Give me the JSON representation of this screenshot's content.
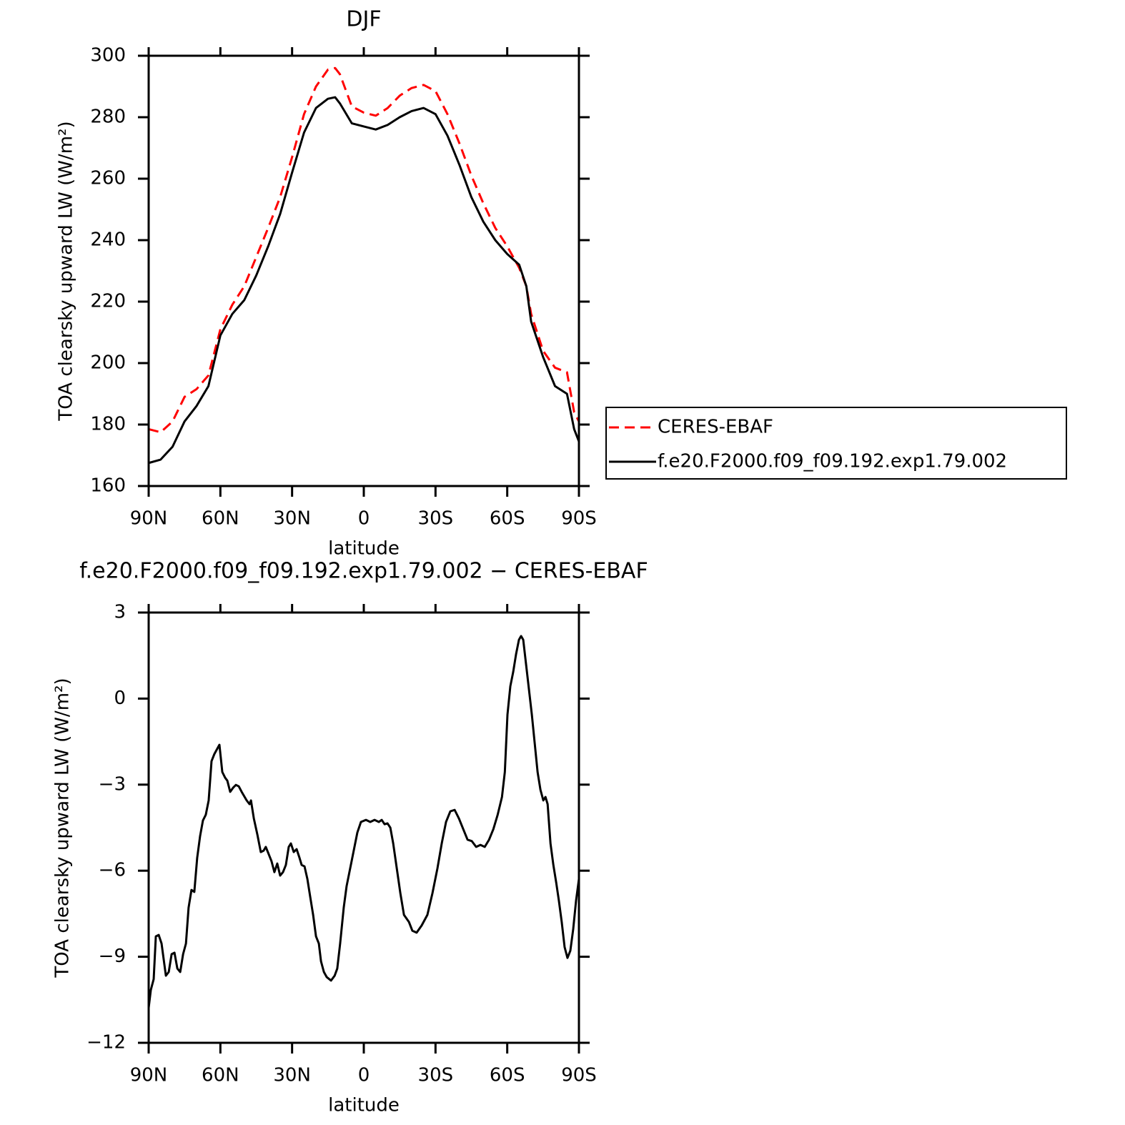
{
  "chart_data": [
    {
      "type": "line",
      "title": "DJF",
      "xlabel": "latitude",
      "ylabel": "TOA clearsky upward LW (W/m²)",
      "x": [
        90,
        85,
        80,
        75,
        70,
        65,
        60,
        55,
        50,
        45,
        40,
        35,
        30,
        25,
        20,
        15,
        12,
        10,
        5,
        0,
        -5,
        -10,
        -15,
        -20,
        -25,
        -30,
        -35,
        -40,
        -45,
        -50,
        -55,
        -60,
        -65,
        -68,
        -70,
        -75,
        -80,
        -85,
        -88,
        -90
      ],
      "series": [
        {
          "name": "CERES-EBAF",
          "color": "#ff0000",
          "line_style": "dashed",
          "values": [
            178.5,
            177.5,
            181,
            189,
            191.5,
            196,
            211,
            219,
            225,
            234.5,
            244,
            254,
            267,
            281,
            290,
            295.5,
            296,
            294,
            283.5,
            281.5,
            280.5,
            283,
            287,
            289.5,
            290.5,
            288.5,
            281,
            271.5,
            261,
            252,
            244,
            238,
            231,
            225,
            216,
            204,
            198.5,
            197,
            184,
            181
          ]
        },
        {
          "name": "f.e20.F2000.f09_f09.192.exp1.79.002",
          "color": "#000000",
          "line_style": "solid",
          "values": [
            167.5,
            168.6,
            172.8,
            181,
            186,
            192.5,
            209,
            216,
            220.5,
            228.5,
            238,
            248.5,
            262,
            275,
            283,
            286,
            286.5,
            284.5,
            278,
            277,
            276,
            277.5,
            280,
            282,
            283,
            281,
            274,
            264.5,
            254,
            246,
            240,
            235.5,
            232,
            225,
            213.5,
            202,
            192.5,
            190,
            178.5,
            174.5
          ]
        }
      ],
      "xlim": [
        90,
        -90
      ],
      "xticks": [
        {
          "value": 90,
          "label": "90N"
        },
        {
          "value": 60,
          "label": "60N"
        },
        {
          "value": 30,
          "label": "30N"
        },
        0,
        {
          "value": -30,
          "label": "30S"
        },
        {
          "value": -60,
          "label": "60S"
        },
        {
          "value": -90,
          "label": "90S"
        }
      ],
      "ylim": [
        160,
        300
      ],
      "yticks": [
        160,
        180,
        200,
        220,
        240,
        260,
        280,
        300
      ],
      "legend": "right"
    },
    {
      "type": "line",
      "title": "f.e20.F2000.f09_f09.192.exp1.79.002 − CERES-EBAF",
      "xlabel": "latitude",
      "ylabel": "TOA clearsky upward LW (W/m²)",
      "x": [
        90.0,
        89.1,
        87.9,
        87.0,
        85.8,
        84.6,
        82.8,
        81.6,
        80.4,
        79.2,
        78.0,
        76.8,
        75.6,
        74.4,
        73.3,
        72.1,
        70.9,
        69.7,
        68.5,
        67.3,
        66.1,
        64.9,
        63.7,
        62.5,
        60.4,
        59.2,
        58.0,
        57.1,
        55.9,
        54.7,
        53.5,
        52.3,
        51.1,
        49.0,
        47.8,
        47.2,
        46.0,
        44.5,
        43.1,
        41.9,
        41.0,
        39.8,
        38.6,
        37.4,
        36.2,
        35.0,
        33.8,
        32.6,
        31.4,
        30.5,
        29.3,
        28.1,
        26.9,
        26.0,
        24.8,
        23.6,
        22.4,
        21.2,
        20.0,
        18.8,
        17.9,
        16.7,
        15.5,
        13.7,
        12.2,
        11.1,
        9.9,
        8.4,
        7.2,
        5.1,
        2.7,
        1.2,
        -0.9,
        -2.7,
        -4.5,
        -6.3,
        -7.5,
        -8.7,
        -9.9,
        -11.1,
        -12.3,
        -13.8,
        -15.3,
        -16.8,
        -18.9,
        -20.3,
        -22.1,
        -24.2,
        -26.6,
        -28.7,
        -30.8,
        -32.6,
        -34.4,
        -36.2,
        -38.0,
        -39.8,
        -41.6,
        -43.4,
        -45.2,
        -47.0,
        -48.8,
        -50.6,
        -52.4,
        -54.2,
        -56.0,
        -57.8,
        -59.0,
        -60.1,
        -61.3,
        -62.5,
        -63.7,
        -64.9,
        -65.8,
        -66.7,
        -67.9,
        -69.1,
        -70.3,
        -71.5,
        -72.7,
        -73.9,
        -75.1,
        -76.0,
        -76.9,
        -78.1,
        -79.3,
        -80.5,
        -81.6,
        -82.8,
        -84.0,
        -85.2,
        -86.4,
        -87.6,
        -88.8,
        -90.0
      ],
      "series": [
        {
          "name": "f.e20.F2000.f09_f09.192.exp1.79.002 − CERES-EBAF",
          "color": "#000000",
          "line_style": "solid",
          "values": [
            -10.78,
            -10.16,
            -9.78,
            -8.29,
            -8.24,
            -8.54,
            -9.66,
            -9.53,
            -8.91,
            -8.86,
            -9.41,
            -9.53,
            -8.91,
            -8.54,
            -7.29,
            -6.67,
            -6.74,
            -5.55,
            -4.8,
            -4.25,
            -4.05,
            -3.55,
            -2.18,
            -1.93,
            -1.61,
            -2.56,
            -2.76,
            -2.86,
            -3.25,
            -3.11,
            -3.01,
            -3.06,
            -3.25,
            -3.55,
            -3.68,
            -3.55,
            -4.18,
            -4.75,
            -5.35,
            -5.3,
            -5.17,
            -5.42,
            -5.67,
            -6.05,
            -5.75,
            -6.17,
            -6.05,
            -5.8,
            -5.17,
            -5.05,
            -5.35,
            -5.25,
            -5.55,
            -5.8,
            -5.85,
            -6.29,
            -6.92,
            -7.54,
            -8.29,
            -8.54,
            -9.16,
            -9.53,
            -9.71,
            -9.83,
            -9.66,
            -9.41,
            -8.54,
            -7.29,
            -6.54,
            -5.67,
            -4.67,
            -4.3,
            -4.23,
            -4.3,
            -4.23,
            -4.3,
            -4.23,
            -4.38,
            -4.35,
            -4.5,
            -5.05,
            -5.92,
            -6.79,
            -7.54,
            -7.79,
            -8.09,
            -8.16,
            -7.91,
            -7.54,
            -6.79,
            -5.92,
            -5.05,
            -4.3,
            -3.93,
            -3.88,
            -4.18,
            -4.55,
            -4.92,
            -4.97,
            -5.17,
            -5.1,
            -5.17,
            -4.92,
            -4.55,
            -4.05,
            -3.43,
            -2.56,
            -0.56,
            0.43,
            0.93,
            1.55,
            2.05,
            2.18,
            2.05,
            1.18,
            0.31,
            -0.56,
            -1.56,
            -2.56,
            -3.18,
            -3.55,
            -3.43,
            -3.68,
            -5.05,
            -5.8,
            -6.42,
            -7.04,
            -7.79,
            -8.66,
            -9.04,
            -8.79,
            -8.04,
            -7.04,
            -6.29
          ]
        }
      ],
      "xlim": [
        90,
        -90
      ],
      "xticks": [
        {
          "value": 90,
          "label": "90N"
        },
        {
          "value": 60,
          "label": "60N"
        },
        {
          "value": 30,
          "label": "30N"
        },
        0,
        {
          "value": -30,
          "label": "30S"
        },
        {
          "value": -60,
          "label": "60S"
        },
        {
          "value": -90,
          "label": "90S"
        }
      ],
      "ylim": [
        -12,
        3
      ],
      "yticks": [
        {
          "value": -12,
          "label": "−12"
        },
        {
          "value": -9,
          "label": "−9"
        },
        {
          "value": -6,
          "label": "−6"
        },
        {
          "value": -3,
          "label": "−3"
        },
        0,
        3
      ]
    }
  ]
}
